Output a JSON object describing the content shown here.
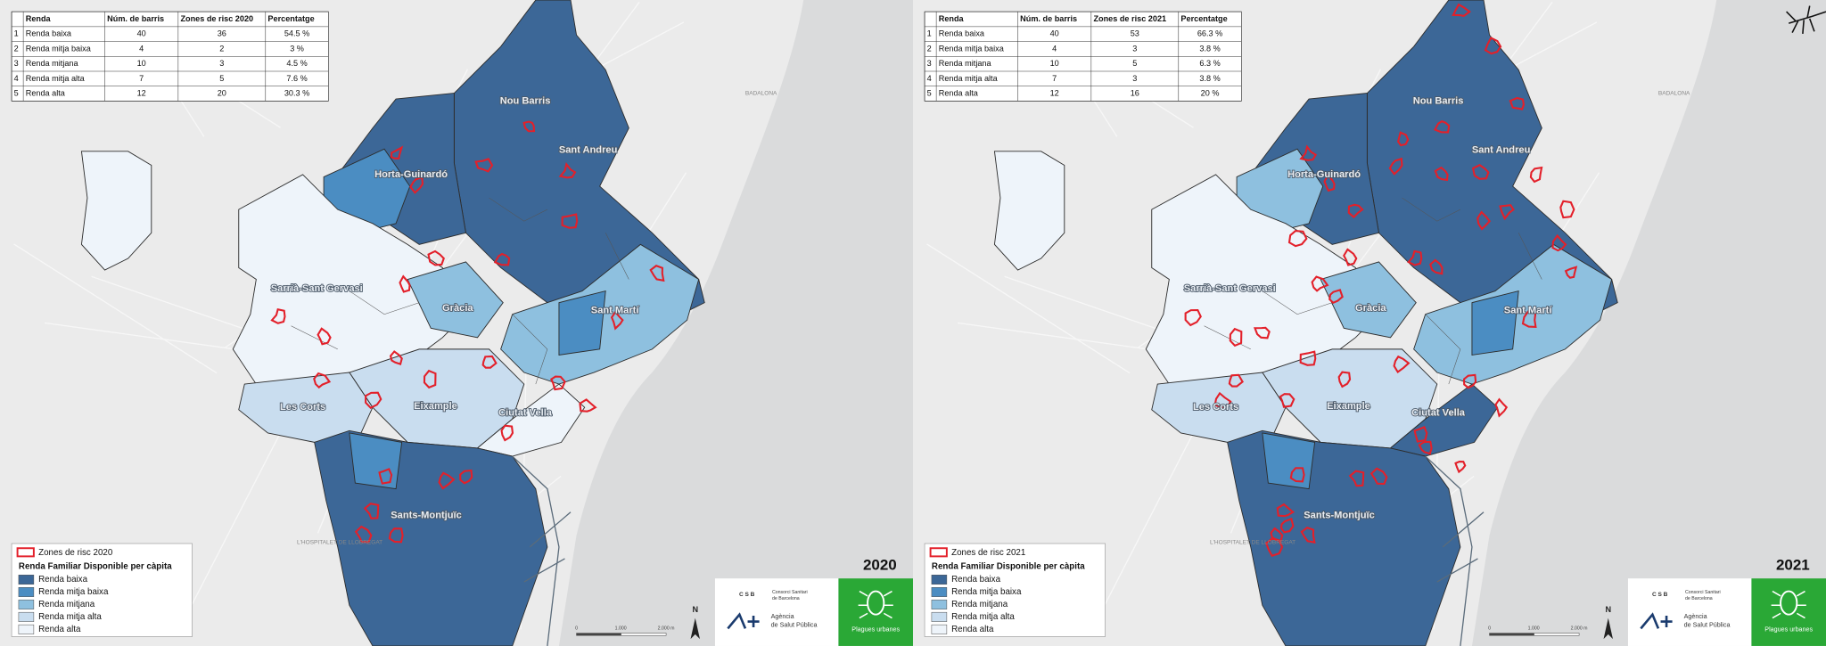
{
  "panels": [
    {
      "year": "2020",
      "table": {
        "header": [
          "Renda",
          "Núm. de barris",
          "Zones de risc 2020",
          "Percentatge"
        ],
        "rows": [
          [
            "1",
            "Renda baixa",
            "40",
            "36",
            "54.5 %"
          ],
          [
            "2",
            "Renda mitja baixa",
            "4",
            "2",
            "3 %"
          ],
          [
            "3",
            "Renda mitjana",
            "10",
            "3",
            "4.5 %"
          ],
          [
            "4",
            "Renda mitja alta",
            "7",
            "5",
            "7.6 %"
          ],
          [
            "5",
            "Renda alta",
            "12",
            "20",
            "30.3 %"
          ]
        ]
      },
      "legend": {
        "risk": "Zones de risc 2020",
        "title": "Renda Familiar Disponible per càpita",
        "classes": [
          "Renda baixa",
          "Renda mitja baixa",
          "Renda mitjana",
          "Renda mitja alta",
          "Renda alta"
        ]
      },
      "districts": [
        "Nou Barris",
        "Sant Andreu",
        "Horta-Guinardó",
        "Sarrià-Sant Gervasi",
        "Gràcia",
        "Sant Martí",
        "Les Corts",
        "Eixample",
        "Ciutat Vella",
        "Sants-Montjuïc"
      ],
      "places": [
        "BADALONA",
        "L'HOSPITALET DE LLOBREGAT"
      ],
      "scale": [
        "0",
        "1.000",
        "2.000 m"
      ],
      "north": "N",
      "logo": {
        "csb": "C S B",
        "csb_1": "Consorci Sanitari",
        "csb_2": "de Barcelona",
        "aspb_1": "Agència",
        "aspb_2": "de Salut Pública",
        "plagues": "Plagues urbanes"
      }
    },
    {
      "year": "2021",
      "table": {
        "header": [
          "Renda",
          "Núm. de barris",
          "Zones de risc 2021",
          "Percentatge"
        ],
        "rows": [
          [
            "1",
            "Renda baixa",
            "40",
            "53",
            "66.3 %"
          ],
          [
            "2",
            "Renda mitja baixa",
            "4",
            "3",
            "3.8 %"
          ],
          [
            "3",
            "Renda mitjana",
            "10",
            "5",
            "6.3 %"
          ],
          [
            "4",
            "Renda mitja alta",
            "7",
            "3",
            "3.8 %"
          ],
          [
            "5",
            "Renda alta",
            "12",
            "16",
            "20 %"
          ]
        ]
      },
      "legend": {
        "risk": "Zones de risc 2021",
        "title": "Renda Familiar Disponible per càpita",
        "classes": [
          "Renda baixa",
          "Renda mitja baixa",
          "Renda mitjana",
          "Renda mitja alta",
          "Renda alta"
        ]
      },
      "districts": [
        "Nou Barris",
        "Sant Andreu",
        "Horta-Guinardó",
        "Sarrià-Sant Gervasi",
        "Gràcia",
        "Sant Martí",
        "Les Corts",
        "Eixample",
        "Ciutat Vella",
        "Sants-Montjuïc"
      ],
      "places": [
        "BADALONA",
        "L'HOSPITALET DE LLOBREGAT"
      ],
      "scale": [
        "0",
        "1.000",
        "2.000 m"
      ],
      "north": "N",
      "logo": {
        "csb": "C S B",
        "csb_1": "Consorci Sanitari",
        "csb_2": "de Barcelona",
        "aspb_1": "Agència",
        "aspb_2": "de Salut Pública",
        "plagues": "Plagues urbanes"
      }
    }
  ]
}
